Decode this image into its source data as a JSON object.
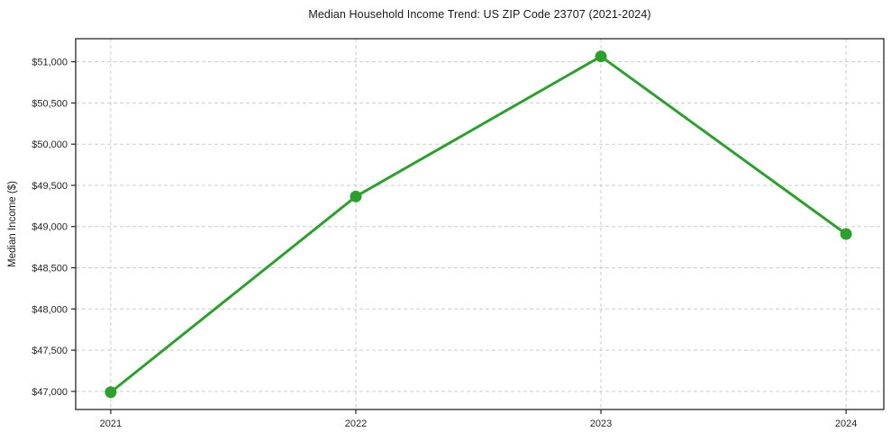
{
  "chart_data": {
    "type": "line",
    "title": "Median Household Income Trend: US ZIP Code 23707 (2021-2024)",
    "xlabel": "",
    "ylabel": "Median Income ($)",
    "x": [
      2021,
      2022,
      2023,
      2024
    ],
    "x_tick_labels": [
      "2021",
      "2022",
      "2023",
      "2024"
    ],
    "series": [
      {
        "name": "Median Household Income",
        "values": [
          46990,
          49365,
          51065,
          48910
        ],
        "color": "#2ca02c",
        "marker": "circle"
      }
    ],
    "y_ticks": [
      47000,
      47500,
      48000,
      48500,
      49000,
      49500,
      50000,
      50500,
      51000
    ],
    "y_tick_labels": [
      "$47,000",
      "$47,500",
      "$48,000",
      "$48,500",
      "$49,000",
      "$49,500",
      "$50,000",
      "$50,500",
      "$51,000"
    ],
    "ylim": [
      46780,
      51280
    ],
    "xlim": [
      2020.857,
      2024.154
    ],
    "grid": true,
    "grid_style": "dashed",
    "legend": "none",
    "colors": {
      "line": "#2ca02c",
      "grid": "#cccccc",
      "spine": "#262626",
      "tick_label": "#262626",
      "background": "#ffffff"
    }
  }
}
